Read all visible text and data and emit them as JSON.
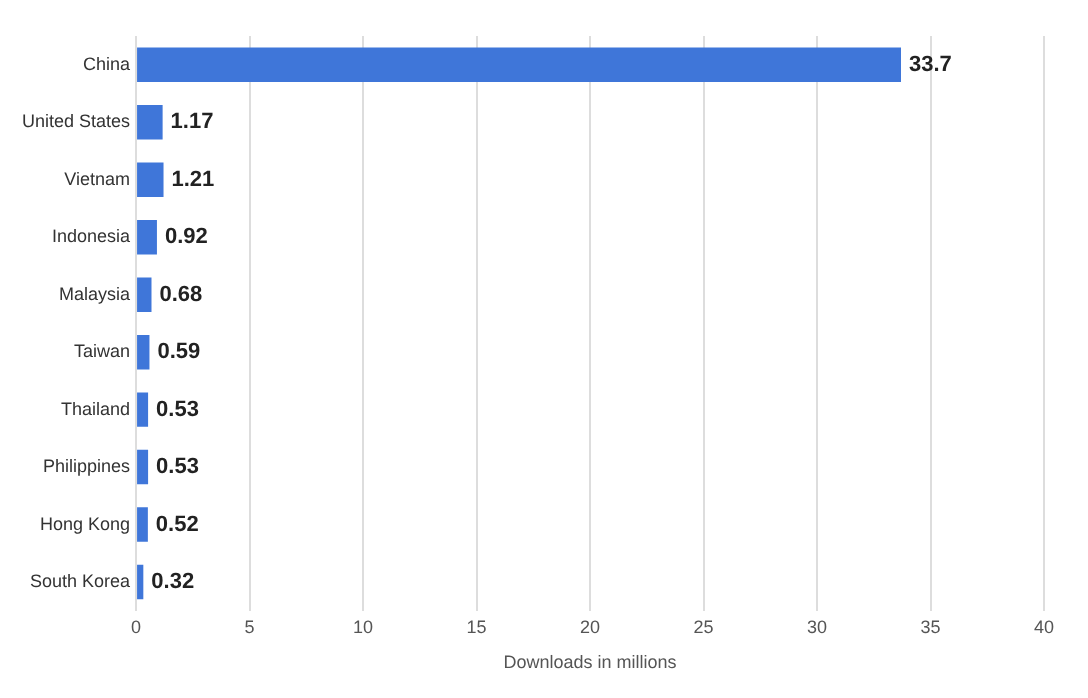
{
  "chart_data": {
    "type": "bar",
    "orientation": "horizontal",
    "xlabel": "Downloads in millions",
    "categories": [
      "China",
      "United States",
      "Vietnam",
      "Indonesia",
      "Malaysia",
      "Taiwan",
      "Thailand",
      "Philippines",
      "Hong Kong",
      "South Korea"
    ],
    "values": [
      33.7,
      1.17,
      1.21,
      0.92,
      0.68,
      0.59,
      0.53,
      0.53,
      0.52,
      0.32
    ],
    "color": "#3f76d9",
    "xlim": [
      0,
      40
    ],
    "xticks": [
      0,
      5,
      10,
      15,
      20,
      25,
      30,
      35,
      40
    ],
    "grid": "x",
    "data_labels": true,
    "legend": false
  }
}
